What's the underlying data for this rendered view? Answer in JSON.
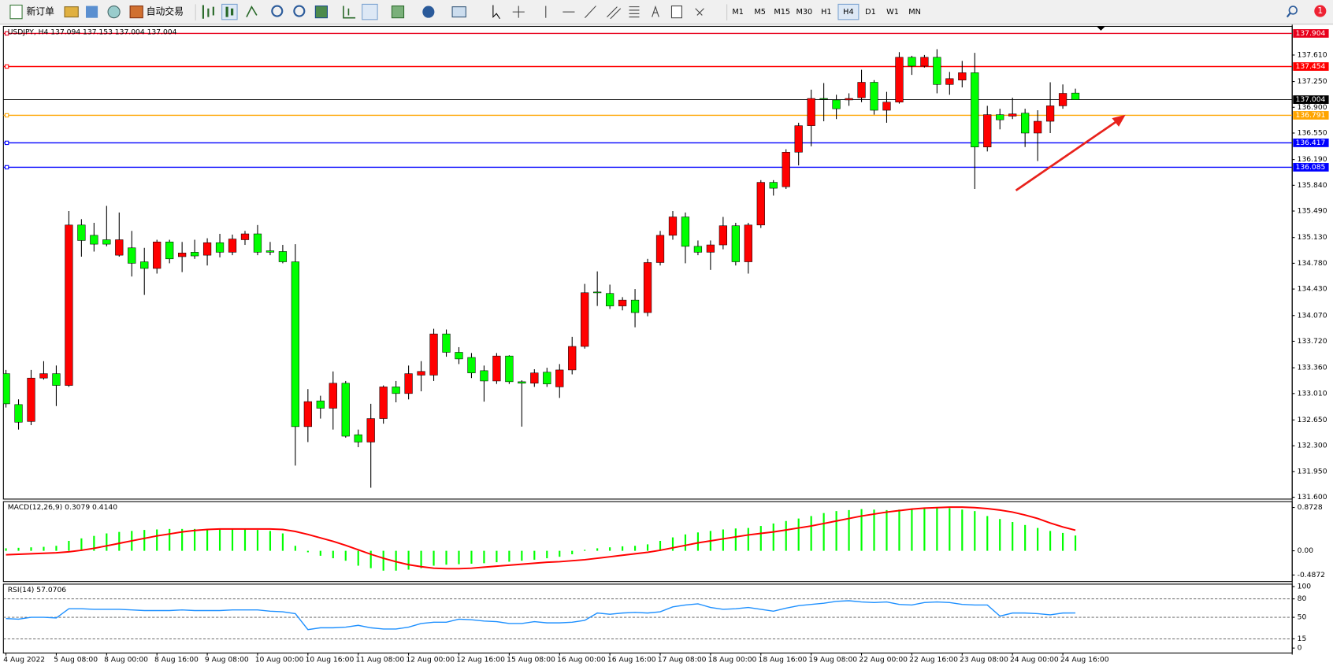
{
  "toolbar": {
    "new_order": "新订单",
    "auto_trading": "自动交易",
    "timeframes": [
      "M1",
      "M5",
      "M15",
      "M30",
      "H1",
      "H4",
      "D1",
      "W1",
      "MN"
    ],
    "active_timeframe": "H4",
    "notifications": "1"
  },
  "chart_data": [
    {
      "type": "candlestick",
      "title": "USDJPY, H4  137.094 137.153 137.004 137.004",
      "up_color": "#ff0000",
      "down_color": "#00ff00",
      "wick_color": "#000000",
      "categories": [
        "4 Aug 2022",
        null,
        null,
        null,
        "5 Aug 08:00",
        null,
        null,
        null,
        "8 Aug 00:00",
        null,
        null,
        null,
        "8 Aug 16:00",
        null,
        null,
        null,
        "9 Aug 08:00",
        null,
        null,
        null,
        "10 Aug 00:00",
        null,
        null,
        null,
        "10 Aug 16:00",
        null,
        null,
        null,
        "11 Aug 08:00",
        null,
        null,
        null,
        "12 Aug 00:00",
        null,
        null,
        null,
        "12 Aug 16:00",
        null,
        null,
        null,
        "15 Aug 08:00",
        null,
        null,
        null,
        "16 Aug 00:00",
        null,
        null,
        null,
        "16 Aug 16:00",
        null,
        null,
        null,
        "17 Aug 08:00",
        null,
        null,
        null,
        "18 Aug 00:00",
        null,
        null,
        null,
        "18 Aug 16:00",
        null,
        null,
        null,
        "19 Aug 08:00",
        null,
        null,
        null,
        "22 Aug 00:00",
        null,
        null,
        null,
        "22 Aug 16:00",
        null,
        null,
        null,
        "23 Aug 08:00",
        null,
        null,
        null,
        "24 Aug 00:00",
        null,
        null,
        null,
        "24 Aug 16:00",
        null
      ],
      "open": [
        133.28,
        132.86,
        132.63,
        133.22,
        133.28,
        133.12,
        135.3,
        135.16,
        135.1,
        134.89,
        134.99,
        134.8,
        134.71,
        135.07,
        134.87,
        134.93,
        134.89,
        135.06,
        134.93,
        135.1,
        135.18,
        134.95,
        134.94,
        134.8,
        132.56,
        132.91,
        132.81,
        133.15,
        132.45,
        132.35,
        132.67,
        133.1,
        133.01,
        133.26,
        133.26,
        133.82,
        133.57,
        133.5,
        133.32,
        133.18,
        133.52,
        133.17,
        133.15,
        133.3,
        133.1,
        133.33,
        133.65,
        134.39,
        134.37,
        134.2,
        134.28,
        134.11,
        134.79,
        135.16,
        135.41,
        135.01,
        134.93,
        135.03,
        135.29,
        134.8,
        135.3,
        135.88,
        135.82,
        136.29,
        136.65,
        137.02,
        137.0,
        137.0,
        137.03,
        137.24,
        136.86,
        136.97,
        137.58,
        137.46,
        137.58,
        137.21,
        137.27,
        137.37,
        136.36,
        136.8,
        136.78,
        136.82,
        136.55,
        136.71,
        136.92,
        137.094
      ],
      "high": [
        133.33,
        132.93,
        133.33,
        133.45,
        133.39,
        135.49,
        135.38,
        135.33,
        135.56,
        135.47,
        135.22,
        134.99,
        135.1,
        135.1,
        135.07,
        135.1,
        135.12,
        135.18,
        135.17,
        135.22,
        135.3,
        135.07,
        135.03,
        135.04,
        133.07,
        132.98,
        133.31,
        133.18,
        132.52,
        132.87,
        133.12,
        133.18,
        133.39,
        133.45,
        133.89,
        133.88,
        133.64,
        133.56,
        133.39,
        133.56,
        133.53,
        133.19,
        133.34,
        133.36,
        133.41,
        133.78,
        134.5,
        134.67,
        134.49,
        134.32,
        134.43,
        134.84,
        135.22,
        135.49,
        135.47,
        135.09,
        135.09,
        135.41,
        135.33,
        135.33,
        135.91,
        135.91,
        136.33,
        136.69,
        137.14,
        137.23,
        137.07,
        137.09,
        137.41,
        137.27,
        137.11,
        137.65,
        137.6,
        137.61,
        137.69,
        137.38,
        137.53,
        137.64,
        136.92,
        136.88,
        137.03,
        136.88,
        136.86,
        137.24,
        137.21,
        137.153
      ],
      "low": [
        132.82,
        132.52,
        132.58,
        133.2,
        132.84,
        133.1,
        134.87,
        134.94,
        135.01,
        134.87,
        134.6,
        134.35,
        134.64,
        134.78,
        134.66,
        134.84,
        134.75,
        134.86,
        134.89,
        135.03,
        134.89,
        134.89,
        134.78,
        132.03,
        132.35,
        132.67,
        132.52,
        132.41,
        132.28,
        131.73,
        132.6,
        132.89,
        132.93,
        133.04,
        133.18,
        133.51,
        133.41,
        133.22,
        132.9,
        133.14,
        133.14,
        132.56,
        133.1,
        133.1,
        132.95,
        133.27,
        133.62,
        134.2,
        134.16,
        134.14,
        133.91,
        134.06,
        134.75,
        135.1,
        134.78,
        134.89,
        134.69,
        134.97,
        134.75,
        134.64,
        135.26,
        135.7,
        135.79,
        136.11,
        136.37,
        136.71,
        136.74,
        136.92,
        136.97,
        136.8,
        136.69,
        136.95,
        137.34,
        137.44,
        137.09,
        137.07,
        137.17,
        135.79,
        136.3,
        136.6,
        136.74,
        136.36,
        136.17,
        136.55,
        136.88,
        137.004
      ],
      "close": [
        132.87,
        132.62,
        133.22,
        133.28,
        133.12,
        135.3,
        135.09,
        135.04,
        135.04,
        135.1,
        134.78,
        134.71,
        135.07,
        134.84,
        134.92,
        134.88,
        135.06,
        134.93,
        135.11,
        135.18,
        134.93,
        134.93,
        134.8,
        132.56,
        132.9,
        132.81,
        133.15,
        132.43,
        132.35,
        132.67,
        133.1,
        133.01,
        133.28,
        133.31,
        133.82,
        133.57,
        133.48,
        133.29,
        133.18,
        133.52,
        133.17,
        133.15,
        133.29,
        133.14,
        133.33,
        133.65,
        134.38,
        134.38,
        134.2,
        134.28,
        134.11,
        134.79,
        135.16,
        135.41,
        135.01,
        134.93,
        135.03,
        135.29,
        134.8,
        135.3,
        135.88,
        135.8,
        136.29,
        136.65,
        137.02,
        137.01,
        136.88,
        137.02,
        137.24,
        136.86,
        136.97,
        137.58,
        137.46,
        137.58,
        137.21,
        137.29,
        137.37,
        136.36,
        136.8,
        136.73,
        136.81,
        136.55,
        136.71,
        136.92,
        137.09,
        137.004
      ],
      "ylim": [
        131.575,
        138.0
      ],
      "yticks": [
        {
          "value": 137.61,
          "label": "137.610"
        },
        {
          "value": 137.25,
          "label": "137.250"
        },
        {
          "value": 136.9,
          "label": "136.900"
        },
        {
          "value": 136.55,
          "label": "136.550"
        },
        {
          "value": 136.19,
          "label": "136.190"
        },
        {
          "value": 135.84,
          "label": "135.840"
        },
        {
          "value": 135.49,
          "label": "135.490"
        },
        {
          "value": 135.13,
          "label": "135.130"
        },
        {
          "value": 134.78,
          "label": "134.780"
        },
        {
          "value": 134.43,
          "label": "134.430"
        },
        {
          "value": 134.07,
          "label": "134.070"
        },
        {
          "value": 133.72,
          "label": "133.720"
        },
        {
          "value": 133.36,
          "label": "133.360"
        },
        {
          "value": 133.01,
          "label": "133.010"
        },
        {
          "value": 132.65,
          "label": "132.650"
        },
        {
          "value": 132.3,
          "label": "132.300"
        },
        {
          "value": 131.95,
          "label": "131.950"
        },
        {
          "value": 131.6,
          "label": "131.600"
        }
      ],
      "hlines": [
        {
          "value": 137.904,
          "color": "#e8001c"
        },
        {
          "value": 137.454,
          "color": "#ff0000"
        },
        {
          "value": 137.004,
          "color": "#000000"
        },
        {
          "value": 136.791,
          "color": "#ffa500"
        },
        {
          "value": 136.417,
          "color": "#0000ff"
        },
        {
          "value": 136.085,
          "color": "#0000ff"
        }
      ]
    },
    {
      "type": "macd",
      "title": "MACD(12,26,9) 0.3079 0.4140",
      "histogram_color": "#00ff00",
      "signal_color": "#ff0000",
      "histogram": [
        0.05,
        0.06,
        0.07,
        0.08,
        0.1,
        0.2,
        0.25,
        0.3,
        0.35,
        0.38,
        0.4,
        0.42,
        0.43,
        0.44,
        0.44,
        0.44,
        0.44,
        0.44,
        0.44,
        0.43,
        0.42,
        0.4,
        0.35,
        0.1,
        -0.03,
        -0.1,
        -0.15,
        -0.2,
        -0.3,
        -0.35,
        -0.4,
        -0.4,
        -0.38,
        -0.35,
        -0.3,
        -0.28,
        -0.27,
        -0.26,
        -0.25,
        -0.23,
        -0.22,
        -0.2,
        -0.18,
        -0.15,
        -0.12,
        -0.07,
        0.02,
        0.05,
        0.07,
        0.09,
        0.1,
        0.13,
        0.2,
        0.27,
        0.33,
        0.37,
        0.4,
        0.43,
        0.45,
        0.46,
        0.5,
        0.55,
        0.6,
        0.65,
        0.7,
        0.76,
        0.8,
        0.82,
        0.84,
        0.83,
        0.82,
        0.83,
        0.85,
        0.86,
        0.87,
        0.86,
        0.83,
        0.8,
        0.7,
        0.64,
        0.58,
        0.52,
        0.46,
        0.4,
        0.36,
        0.3079
      ],
      "signal": [
        -0.08,
        -0.07,
        -0.06,
        -0.05,
        -0.04,
        -0.02,
        0.01,
        0.05,
        0.1,
        0.15,
        0.2,
        0.25,
        0.3,
        0.34,
        0.38,
        0.41,
        0.43,
        0.44,
        0.44,
        0.44,
        0.44,
        0.44,
        0.43,
        0.39,
        0.33,
        0.26,
        0.19,
        0.11,
        0.02,
        -0.07,
        -0.15,
        -0.22,
        -0.28,
        -0.32,
        -0.35,
        -0.36,
        -0.36,
        -0.35,
        -0.33,
        -0.31,
        -0.29,
        -0.27,
        -0.25,
        -0.23,
        -0.22,
        -0.2,
        -0.18,
        -0.15,
        -0.12,
        -0.09,
        -0.06,
        -0.03,
        0.01,
        0.06,
        0.11,
        0.16,
        0.2,
        0.24,
        0.28,
        0.32,
        0.35,
        0.38,
        0.42,
        0.46,
        0.5,
        0.55,
        0.6,
        0.65,
        0.7,
        0.74,
        0.78,
        0.81,
        0.84,
        0.86,
        0.87,
        0.88,
        0.88,
        0.87,
        0.85,
        0.82,
        0.78,
        0.72,
        0.65,
        0.56,
        0.48,
        0.414
      ],
      "ylim": [
        -0.62,
        0.99
      ],
      "yticks": [
        0.8728,
        {
          "value": 0,
          "label": "0.00"
        },
        -0.4872
      ]
    },
    {
      "type": "line",
      "title": "RSI(14) 57.0706",
      "color": "#1e90ff",
      "values": [
        48,
        47,
        50,
        50,
        49,
        64,
        64,
        63,
        63,
        63,
        62,
        61,
        61,
        61,
        62,
        61,
        61,
        61,
        62,
        62,
        62,
        60,
        59,
        56,
        30,
        33,
        33,
        34,
        37,
        33,
        31,
        31,
        34,
        40,
        42,
        42,
        47,
        46,
        44,
        43,
        40,
        40,
        43,
        41,
        41,
        42,
        45,
        57,
        55,
        57,
        58,
        57,
        59,
        67,
        70,
        72,
        66,
        63,
        64,
        66,
        63,
        60,
        65,
        69,
        71,
        73,
        76,
        77,
        75,
        74,
        75,
        71,
        70,
        74,
        75,
        74,
        71,
        70,
        70,
        52,
        57,
        57,
        56,
        54,
        57,
        57.0706
      ],
      "ylim": [
        -8,
        104
      ],
      "yticks": [
        100,
        80,
        50,
        15,
        0
      ],
      "levels": [
        80,
        50,
        15
      ]
    }
  ]
}
